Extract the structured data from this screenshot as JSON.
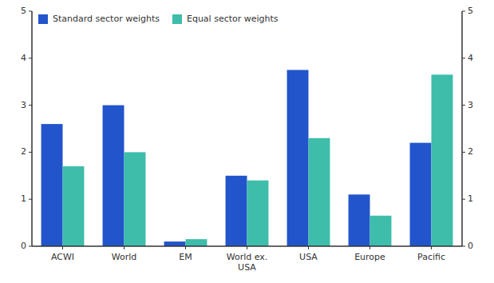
{
  "chart_data": {
    "type": "bar",
    "categories": [
      "ACWI",
      "World",
      "EM",
      "World ex.\nUSA",
      "USA",
      "Europe",
      "Pacific"
    ],
    "series": [
      {
        "name": "Standard sector weights",
        "color": "#2255cc",
        "values": [
          2.6,
          3.0,
          0.1,
          1.5,
          3.75,
          1.1,
          2.2
        ]
      },
      {
        "name": "Equal sector weights",
        "color": "#3dbdaa",
        "values": [
          1.7,
          2.0,
          0.15,
          1.4,
          2.3,
          0.65,
          3.65
        ]
      }
    ],
    "ylim": [
      0,
      5
    ],
    "yticks": [
      0,
      1,
      2,
      3,
      4,
      5
    ],
    "y2lim": [
      0,
      5
    ],
    "y2ticks": [
      0,
      1,
      2,
      3,
      4,
      5
    ],
    "grid": false,
    "legend": "upper left"
  }
}
